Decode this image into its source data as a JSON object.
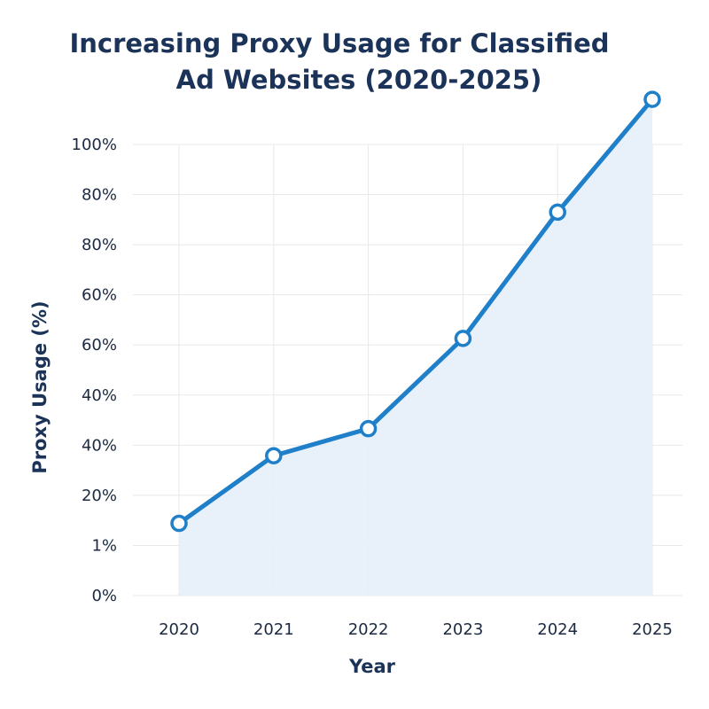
{
  "chart_data": {
    "type": "line",
    "title_lines": [
      "Increasing Proxy Usage for Classified",
      "Ad Websites (2020-2025)"
    ],
    "xlabel": "Year",
    "ylabel": "Proxy Usage (%)",
    "categories": [
      "2020",
      "2021",
      "2022",
      "2023",
      "2024",
      "2025"
    ],
    "values": [
      16,
      31,
      37,
      57,
      85,
      110
    ],
    "ytick_labels": [
      "0%",
      "1%",
      "20%",
      "40%",
      "40%",
      "60%",
      "60%",
      "80%",
      "80%",
      "100%"
    ],
    "ylim": [
      0,
      100
    ],
    "grid": true,
    "area_fill": true,
    "colors": {
      "line": "#1f7fc9",
      "area": "#e6eef8",
      "grid": "#e6e8ec",
      "text": "#1b3358"
    }
  }
}
